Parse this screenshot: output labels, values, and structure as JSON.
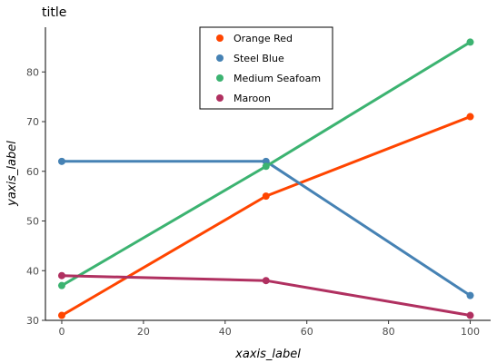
{
  "chart_data": {
    "type": "line",
    "title": "title",
    "xlabel": "xaxis_label",
    "ylabel": "yaxis_label",
    "x": [
      0,
      50,
      100
    ],
    "xlim": [
      -4,
      105
    ],
    "ylim": [
      30,
      89
    ],
    "x_ticks": [
      0,
      20,
      40,
      60,
      80,
      100
    ],
    "y_ticks": [
      30,
      40,
      50,
      60,
      70,
      80
    ],
    "grid": false,
    "legend_position": "top-center",
    "series": [
      {
        "name": "Orange Red",
        "color": "#ff4500",
        "x": [
          0,
          50,
          100
        ],
        "y": [
          31,
          55,
          71
        ]
      },
      {
        "name": "Steel Blue",
        "color": "#4682b4",
        "x": [
          0,
          50,
          100
        ],
        "y": [
          62,
          62,
          35
        ]
      },
      {
        "name": "Medium Seafoam",
        "color": "#3cb371",
        "x": [
          0,
          50,
          100
        ],
        "y": [
          37,
          61,
          86
        ]
      },
      {
        "name": "Maroon",
        "color": "#b03060",
        "x": [
          0,
          50,
          100
        ],
        "y": [
          39,
          38,
          31
        ]
      }
    ]
  }
}
